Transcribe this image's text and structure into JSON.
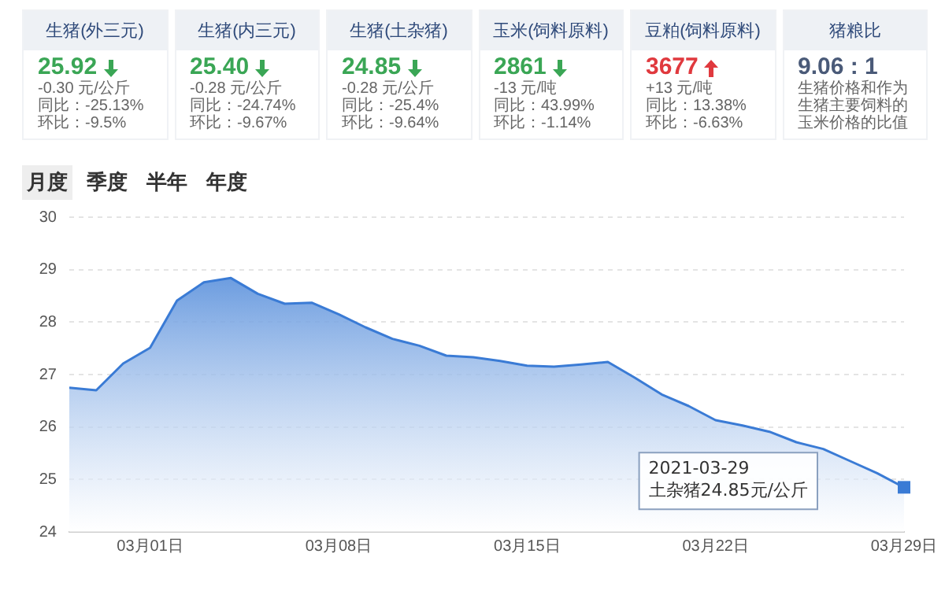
{
  "chart_data": [
    {
      "type": "other",
      "categories": [
        "生猪(外三元)",
        "生猪(内三元)",
        "生猪(土杂猪)",
        "玉米(饲料原料)",
        "豆粕(饲料原料)",
        "猪粮比"
      ],
      "value_labels": [
        "25.92",
        "25.40",
        "24.85",
        "2861",
        "3677",
        "9.06 : 1"
      ],
      "annotations": [
        "-0.30 元/公斤",
        "同比：-25.13%",
        "环比：-9.5%",
        "-0.28 元/公斤",
        "同比：-24.74%",
        "环比：-9.67%",
        "-0.28 元/公斤",
        "同比：-25.4%",
        "环比：-9.64%",
        "-13 元/吨",
        "同比：43.99%",
        "环比：-1.14%",
        "+13 元/吨",
        "同比：13.38%",
        "环比：-6.63%",
        "生猪价格和作为生猪主要饲料的玉米价格的比值"
      ]
    },
    {
      "type": "area",
      "color": "#3a7bd5",
      "grid": "y",
      "marker": "none",
      "x": [
        "2021-02-26",
        "2021-02-27",
        "2021-02-28",
        "2021-03-01",
        "2021-03-02",
        "2021-03-03",
        "2021-03-04",
        "2021-03-05",
        "2021-03-06",
        "2021-03-07",
        "2021-03-08",
        "2021-03-09",
        "2021-03-10",
        "2021-03-11",
        "2021-03-12",
        "2021-03-13",
        "2021-03-14",
        "2021-03-15",
        "2021-03-16",
        "2021-03-17",
        "2021-03-18",
        "2021-03-19",
        "2021-03-20",
        "2021-03-21",
        "2021-03-22",
        "2021-03-23",
        "2021-03-24",
        "2021-03-25",
        "2021-03-26",
        "2021-03-27",
        "2021-03-28",
        "2021-03-29"
      ],
      "values": [
        26.75,
        26.7,
        27.21,
        27.51,
        28.41,
        28.76,
        28.84,
        28.54,
        28.35,
        28.37,
        28.15,
        27.9,
        27.68,
        27.55,
        27.36,
        27.33,
        27.26,
        27.17,
        27.15,
        27.19,
        27.24,
        26.94,
        26.62,
        26.4,
        26.13,
        26.03,
        25.91,
        25.71,
        25.58,
        25.35,
        25.12,
        24.85
      ],
      "xlim": [
        "2021-02-26",
        "2021-03-29"
      ],
      "xticks": [
        {
          "value": "2021-03-01",
          "label": "03月01日"
        },
        {
          "value": "2021-03-08",
          "label": "03月08日"
        },
        {
          "value": "2021-03-15",
          "label": "03月15日"
        },
        {
          "value": "2021-03-22",
          "label": "03月22日"
        },
        {
          "value": "2021-03-29",
          "label": "03月29日"
        }
      ],
      "ylim": [
        24,
        30
      ],
      "yticks": [
        24,
        25,
        26,
        27,
        28,
        29,
        30
      ],
      "annotations": [
        "月度",
        "季度",
        "半年",
        "年度",
        "2021-03-29\n土杂猪24.85元/公斤"
      ]
    }
  ]
}
